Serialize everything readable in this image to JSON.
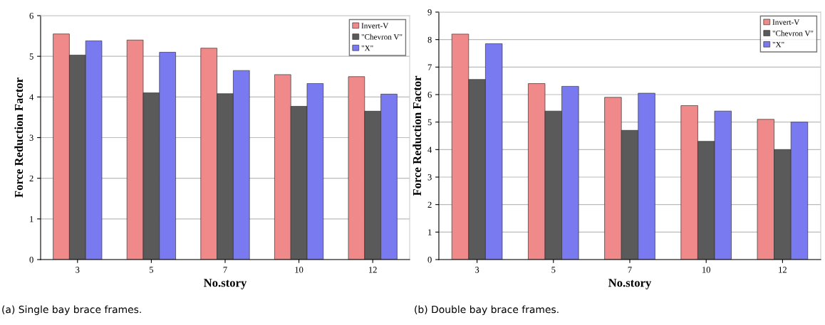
{
  "chart_data": [
    {
      "type": "bar",
      "xlabel": "No.story",
      "ylabel": "Force Reduction Factor",
      "categories": [
        "3",
        "5",
        "7",
        "10",
        "12"
      ],
      "ylim": [
        0,
        6
      ],
      "yticks": [
        0,
        1,
        2,
        3,
        4,
        5,
        6
      ],
      "grid": "y",
      "legend": "top right",
      "annotations": [
        "(a) Single bay brace frames."
      ],
      "series": [
        {
          "name": "Invert-V",
          "color": "#f08a8a",
          "values": [
            5.55,
            5.4,
            5.2,
            4.55,
            4.5
          ]
        },
        {
          "name": "\"Chevron V\"",
          "color": "#5a5a5a",
          "values": [
            5.03,
            4.1,
            4.08,
            3.77,
            3.65
          ]
        },
        {
          "name": "\"X\"",
          "color": "#7a7af0",
          "values": [
            5.38,
            5.1,
            4.65,
            4.33,
            4.07
          ]
        }
      ]
    },
    {
      "type": "bar",
      "xlabel": "No.story",
      "ylabel": "Force Reduction Factor",
      "categories": [
        "3",
        "5",
        "7",
        "10",
        "12"
      ],
      "ylim": [
        0,
        9
      ],
      "yticks": [
        0,
        1,
        2,
        3,
        4,
        5,
        6,
        7,
        8,
        9
      ],
      "grid": "y",
      "legend": "top right",
      "annotations": [
        "(b) Double bay brace frames."
      ],
      "series": [
        {
          "name": "Invert-V",
          "color": "#f08a8a",
          "values": [
            8.2,
            6.4,
            5.9,
            5.6,
            5.1
          ]
        },
        {
          "name": "\"Chevron V\"",
          "color": "#5a5a5a",
          "values": [
            6.55,
            5.4,
            4.7,
            4.3,
            4.0
          ]
        },
        {
          "name": "\"X\"",
          "color": "#7a7af0",
          "values": [
            7.85,
            6.3,
            6.05,
            5.4,
            5.0
          ]
        }
      ]
    }
  ]
}
